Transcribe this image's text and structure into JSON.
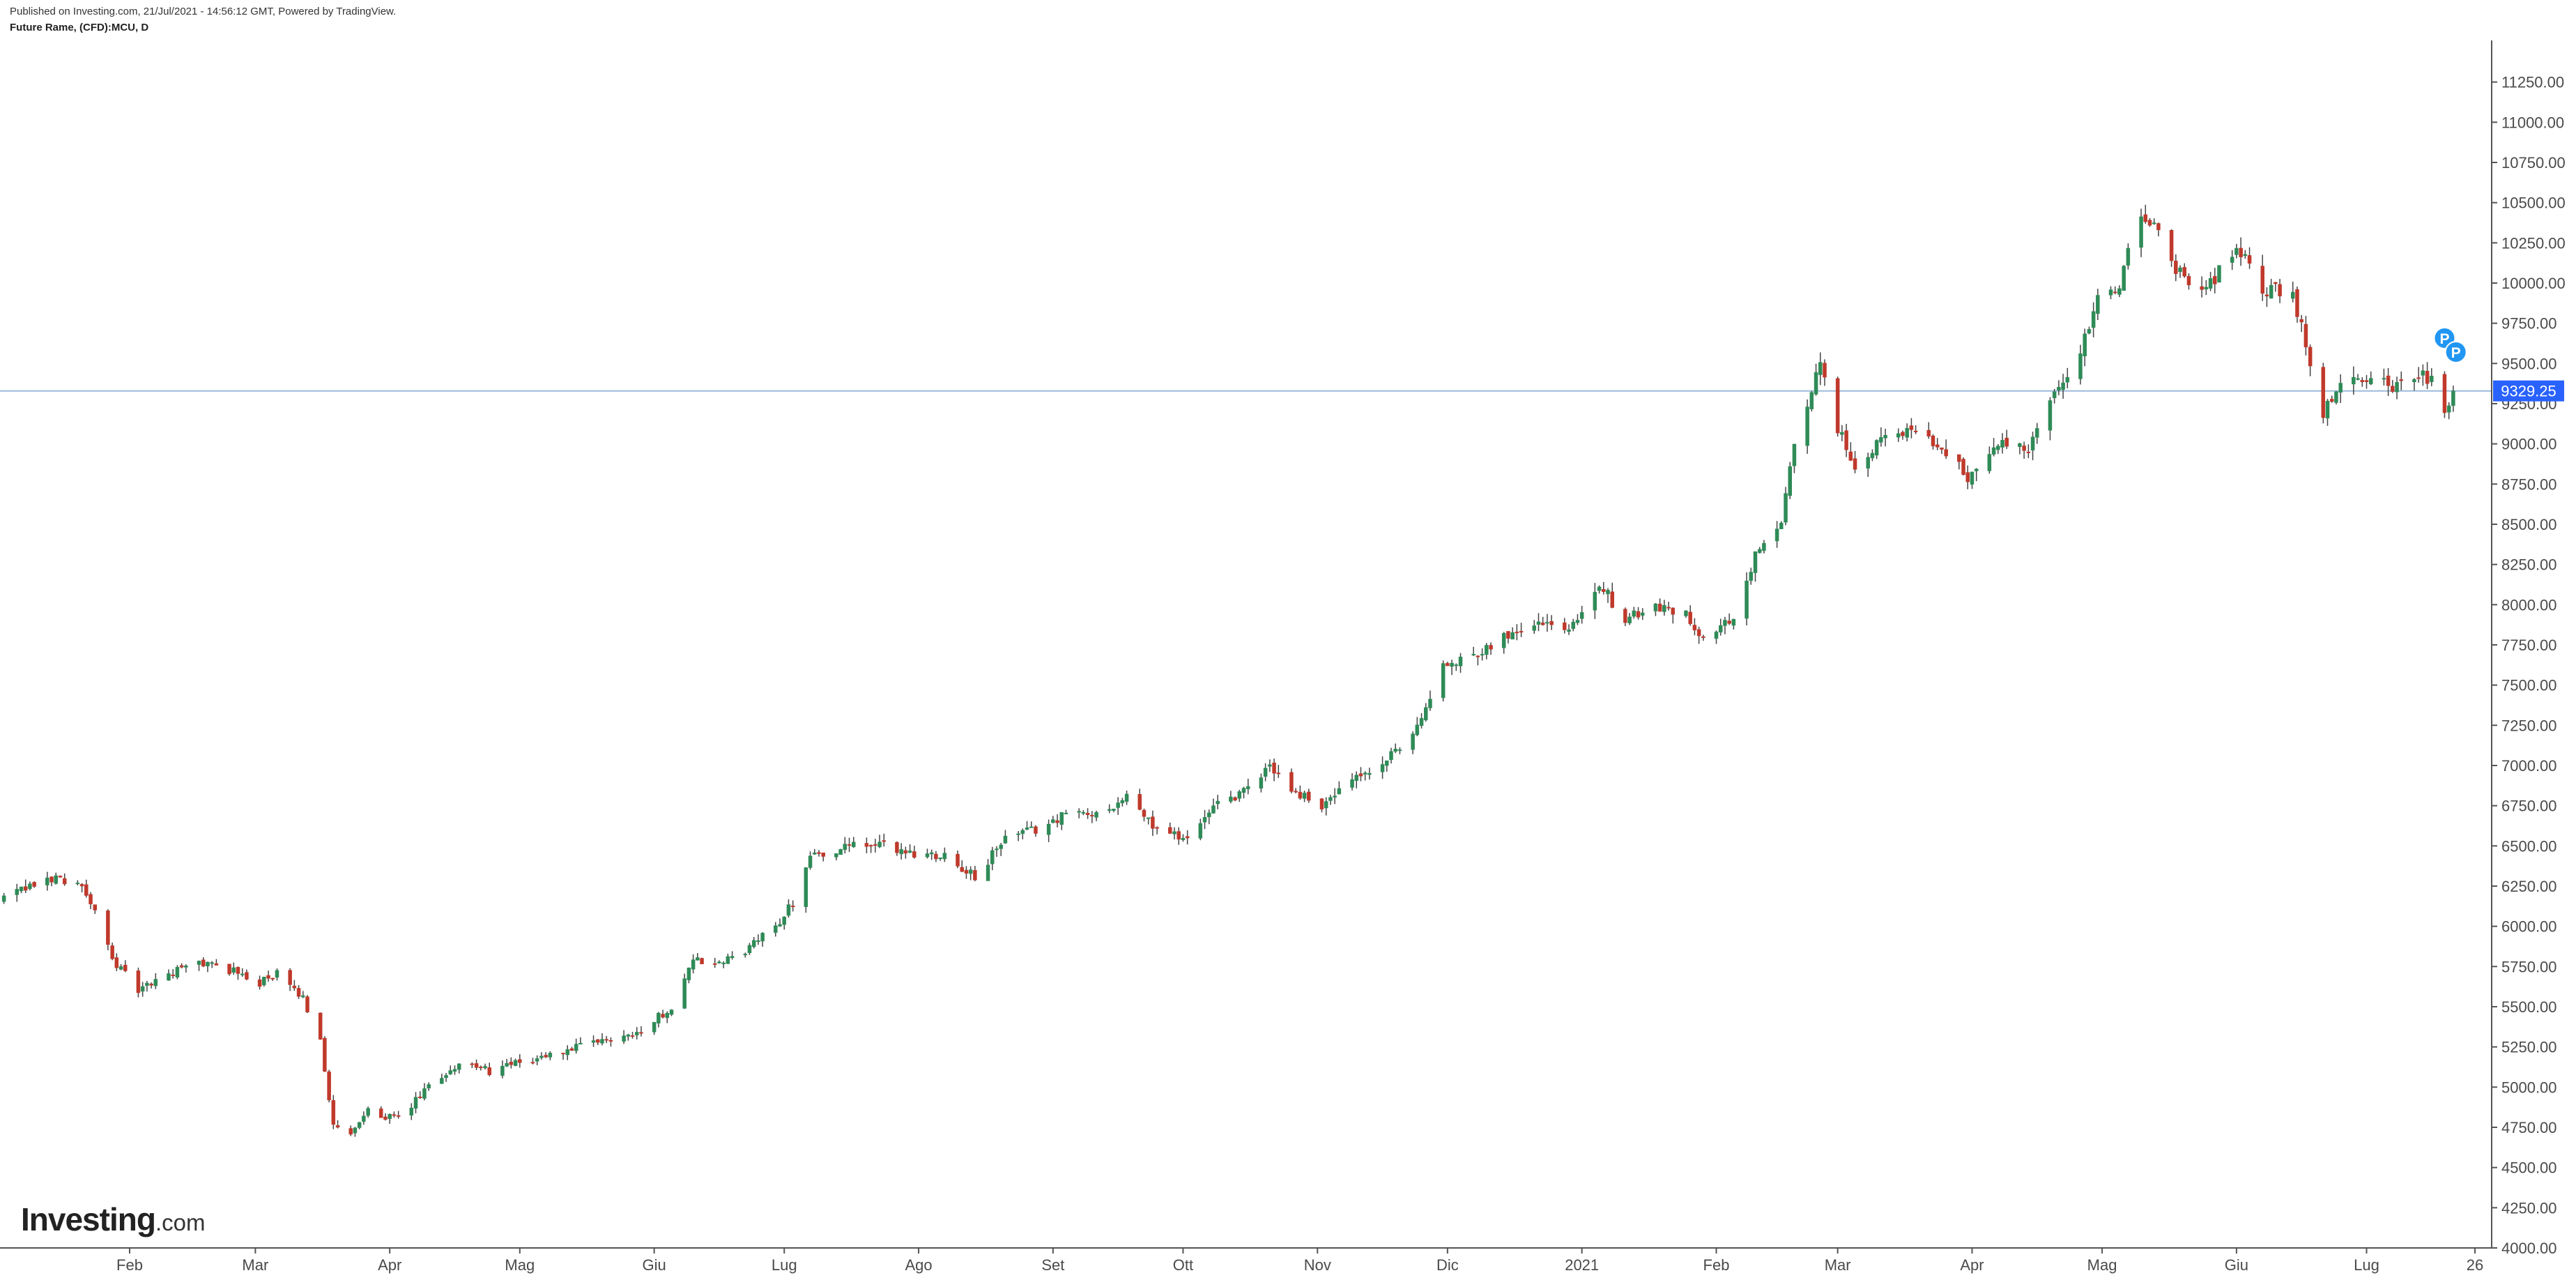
{
  "header": {
    "published_line": "Published on Investing.com, 21/Jul/2021 - 14:56:12 GMT, Powered by TradingView.",
    "symbol_line": "Future Rame, (CFD):MCU, D"
  },
  "logo": {
    "main": "Investing",
    "suffix": ".com"
  },
  "chart_data": {
    "type": "candlestick",
    "title": "Future Rame, (CFD):MCU, D",
    "ylim": [
      4000,
      11500
    ],
    "y_ticks": [
      "4000.00",
      "4250.00",
      "4500.00",
      "4750.00",
      "5000.00",
      "5250.00",
      "5500.00",
      "5750.00",
      "6000.00",
      "6250.00",
      "6500.00",
      "6750.00",
      "7000.00",
      "7250.00",
      "7500.00",
      "7750.00",
      "8000.00",
      "8250.00",
      "8500.00",
      "8750.00",
      "9000.00",
      "9250.00",
      "9500.00",
      "9750.00",
      "10000.00",
      "10250.00",
      "10500.00",
      "10750.00",
      "11000.00",
      "11250.00"
    ],
    "y_tick_values": [
      4000,
      4250,
      4500,
      4750,
      5000,
      5250,
      5500,
      5750,
      6000,
      6250,
      6500,
      6750,
      7000,
      7250,
      7500,
      7750,
      8000,
      8250,
      8500,
      8750,
      9000,
      9250,
      9500,
      9750,
      10000,
      10250,
      10500,
      10750,
      11000,
      11250
    ],
    "x_ticks": [
      {
        "label": "Feb",
        "date": "2020-02-01"
      },
      {
        "label": "Mar",
        "date": "2020-03-01"
      },
      {
        "label": "Apr",
        "date": "2020-04-01"
      },
      {
        "label": "Mag",
        "date": "2020-05-01"
      },
      {
        "label": "Giu",
        "date": "2020-06-01"
      },
      {
        "label": "Lug",
        "date": "2020-07-01"
      },
      {
        "label": "Ago",
        "date": "2020-08-01"
      },
      {
        "label": "Set",
        "date": "2020-09-01"
      },
      {
        "label": "Ott",
        "date": "2020-10-01"
      },
      {
        "label": "Nov",
        "date": "2020-11-01"
      },
      {
        "label": "Dic",
        "date": "2020-12-01"
      },
      {
        "label": "2021",
        "date": "2021-01-01"
      },
      {
        "label": "Feb",
        "date": "2021-02-01"
      },
      {
        "label": "Mar",
        "date": "2021-03-01"
      },
      {
        "label": "Apr",
        "date": "2021-04-01"
      },
      {
        "label": "Mag",
        "date": "2021-05-01"
      },
      {
        "label": "Giu",
        "date": "2021-06-01"
      },
      {
        "label": "Lug",
        "date": "2021-07-01"
      },
      {
        "label": "26",
        "date": "2021-07-26"
      }
    ],
    "last_price": 9329.25,
    "last_price_label": "9329.25",
    "colors": {
      "up": "#26a69a",
      "up_body": "#2e8b57",
      "down": "#c0392b",
      "wick": "#444444",
      "price_line": "#9bbcd9",
      "price_tag": "#2962ff",
      "marker": "#2196f3"
    },
    "markers": [
      {
        "date": "2021-07-19",
        "label": "P"
      },
      {
        "date": "2021-07-20",
        "label": "P"
      }
    ],
    "key_points": [
      {
        "date": "2020-01-03",
        "close": 6180
      },
      {
        "date": "2020-01-08",
        "close": 6230
      },
      {
        "date": "2020-01-14",
        "close": 6300
      },
      {
        "date": "2020-01-20",
        "close": 6280
      },
      {
        "date": "2020-01-23",
        "close": 6150
      },
      {
        "date": "2020-01-28",
        "close": 5800
      },
      {
        "date": "2020-02-03",
        "close": 5600
      },
      {
        "date": "2020-02-10",
        "close": 5700
      },
      {
        "date": "2020-02-17",
        "close": 5780
      },
      {
        "date": "2020-02-24",
        "close": 5730
      },
      {
        "date": "2020-03-02",
        "close": 5650
      },
      {
        "date": "2020-03-06",
        "close": 5700
      },
      {
        "date": "2020-03-12",
        "close": 5550
      },
      {
        "date": "2020-03-16",
        "close": 5300
      },
      {
        "date": "2020-03-19",
        "close": 4750
      },
      {
        "date": "2020-03-23",
        "close": 4700
      },
      {
        "date": "2020-03-27",
        "close": 4850
      },
      {
        "date": "2020-04-03",
        "close": 4800
      },
      {
        "date": "2020-04-10",
        "close": 5000
      },
      {
        "date": "2020-04-17",
        "close": 5150
      },
      {
        "date": "2020-04-24",
        "close": 5100
      },
      {
        "date": "2020-05-01",
        "close": 5150
      },
      {
        "date": "2020-05-08",
        "close": 5200
      },
      {
        "date": "2020-05-15",
        "close": 5250
      },
      {
        "date": "2020-05-22",
        "close": 5300
      },
      {
        "date": "2020-05-29",
        "close": 5350
      },
      {
        "date": "2020-06-05",
        "close": 5500
      },
      {
        "date": "2020-06-10",
        "close": 5800
      },
      {
        "date": "2020-06-15",
        "close": 5750
      },
      {
        "date": "2020-06-22",
        "close": 5850
      },
      {
        "date": "2020-06-29",
        "close": 6000
      },
      {
        "date": "2020-07-03",
        "close": 6150
      },
      {
        "date": "2020-07-07",
        "close": 6450
      },
      {
        "date": "2020-07-10",
        "close": 6450
      },
      {
        "date": "2020-07-17",
        "close": 6500
      },
      {
        "date": "2020-07-24",
        "close": 6500
      },
      {
        "date": "2020-07-31",
        "close": 6450
      },
      {
        "date": "2020-08-07",
        "close": 6450
      },
      {
        "date": "2020-08-14",
        "close": 6300
      },
      {
        "date": "2020-08-21",
        "close": 6550
      },
      {
        "date": "2020-08-28",
        "close": 6600
      },
      {
        "date": "2020-09-04",
        "close": 6700
      },
      {
        "date": "2020-09-11",
        "close": 6700
      },
      {
        "date": "2020-09-18",
        "close": 6800
      },
      {
        "date": "2020-09-25",
        "close": 6600
      },
      {
        "date": "2020-10-02",
        "close": 6550
      },
      {
        "date": "2020-10-09",
        "close": 6750
      },
      {
        "date": "2020-10-16",
        "close": 6850
      },
      {
        "date": "2020-10-21",
        "close": 7000
      },
      {
        "date": "2020-10-26",
        "close": 6850
      },
      {
        "date": "2020-11-02",
        "close": 6750
      },
      {
        "date": "2020-11-09",
        "close": 6900
      },
      {
        "date": "2020-11-16",
        "close": 7000
      },
      {
        "date": "2020-11-23",
        "close": 7200
      },
      {
        "date": "2020-11-30",
        "close": 7600
      },
      {
        "date": "2020-12-07",
        "close": 7700
      },
      {
        "date": "2020-12-14",
        "close": 7800
      },
      {
        "date": "2020-12-21",
        "close": 7900
      },
      {
        "date": "2020-12-28",
        "close": 7850
      },
      {
        "date": "2021-01-06",
        "close": 8100
      },
      {
        "date": "2021-01-11",
        "close": 7900
      },
      {
        "date": "2021-01-18",
        "close": 8000
      },
      {
        "date": "2021-01-25",
        "close": 7950
      },
      {
        "date": "2021-01-29",
        "close": 7800
      },
      {
        "date": "2021-02-05",
        "close": 7900
      },
      {
        "date": "2021-02-10",
        "close": 8300
      },
      {
        "date": "2021-02-16",
        "close": 8500
      },
      {
        "date": "2021-02-19",
        "close": 9000
      },
      {
        "date": "2021-02-23",
        "close": 9300
      },
      {
        "date": "2021-02-25",
        "close": 9500
      },
      {
        "date": "2021-03-01",
        "close": 9100
      },
      {
        "date": "2021-03-05",
        "close": 8850
      },
      {
        "date": "2021-03-12",
        "close": 9050
      },
      {
        "date": "2021-03-19",
        "close": 9100
      },
      {
        "date": "2021-03-26",
        "close": 8950
      },
      {
        "date": "2021-03-31",
        "close": 8800
      },
      {
        "date": "2021-04-07",
        "close": 9000
      },
      {
        "date": "2021-04-14",
        "close": 8950
      },
      {
        "date": "2021-04-20",
        "close": 9300
      },
      {
        "date": "2021-04-27",
        "close": 9650
      },
      {
        "date": "2021-04-30",
        "close": 9900
      },
      {
        "date": "2021-05-05",
        "close": 10000
      },
      {
        "date": "2021-05-10",
        "close": 10450
      },
      {
        "date": "2021-05-14",
        "close": 10300
      },
      {
        "date": "2021-05-20",
        "close": 10000
      },
      {
        "date": "2021-05-26",
        "close": 10000
      },
      {
        "date": "2021-06-01",
        "close": 10250
      },
      {
        "date": "2021-06-07",
        "close": 9950
      },
      {
        "date": "2021-06-14",
        "close": 9950
      },
      {
        "date": "2021-06-17",
        "close": 9600
      },
      {
        "date": "2021-06-21",
        "close": 9200
      },
      {
        "date": "2021-06-25",
        "close": 9350
      },
      {
        "date": "2021-07-01",
        "close": 9400
      },
      {
        "date": "2021-07-08",
        "close": 9350
      },
      {
        "date": "2021-07-13",
        "close": 9450
      },
      {
        "date": "2021-07-16",
        "close": 9400
      },
      {
        "date": "2021-07-19",
        "close": 9200
      },
      {
        "date": "2021-07-21",
        "close": 9329.25
      }
    ]
  }
}
